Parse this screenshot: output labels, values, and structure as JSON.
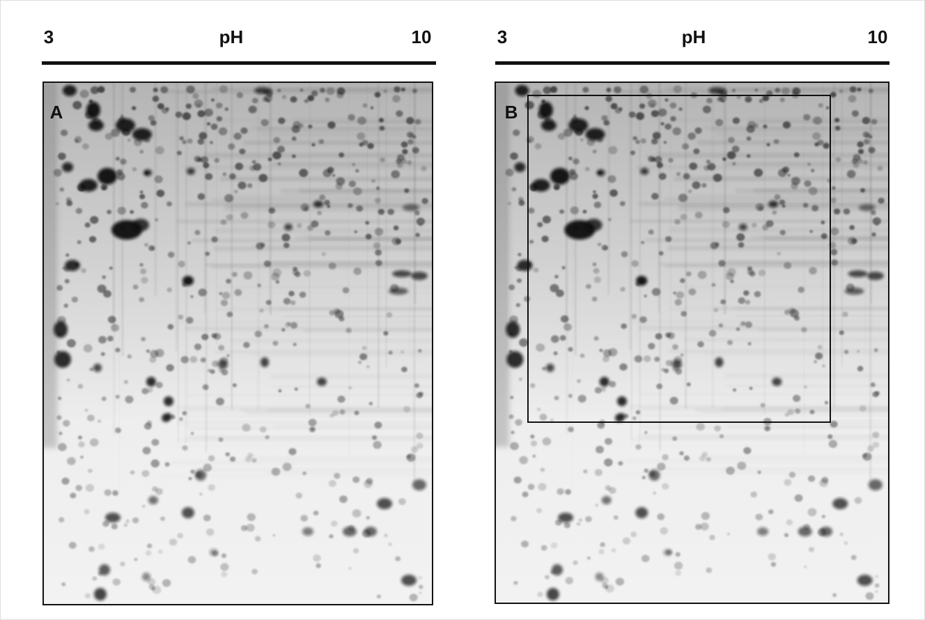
{
  "panels": [
    {
      "ph_start": "3",
      "ph_label": "pH",
      "ph_end": "10",
      "label": "A"
    },
    {
      "ph_start": "3",
      "ph_label": "pH",
      "ph_end": "10",
      "label": "B"
    }
  ]
}
